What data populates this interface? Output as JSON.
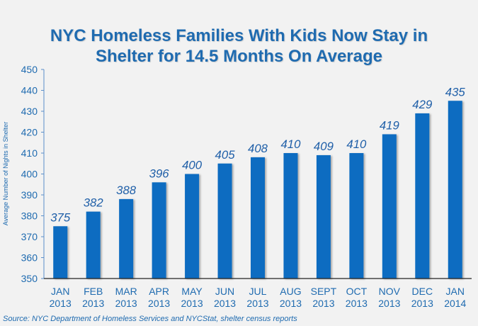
{
  "chart_data": {
    "type": "bar",
    "title": "NYC Homeless Families With Kids Now Stay in Shelter for 14.5 Months On Average",
    "title_lines": [
      "NYC Homeless Families With Kids Now Stay in",
      "Shelter for 14.5 Months On Average"
    ],
    "xlabel": "",
    "ylabel": "Average Number of Nights in Shelter",
    "ylim": [
      350,
      450
    ],
    "yticks": [
      350,
      360,
      370,
      380,
      390,
      400,
      410,
      420,
      430,
      440,
      450
    ],
    "categories": [
      [
        "JAN",
        "2013"
      ],
      [
        "FEB",
        "2013"
      ],
      [
        "MAR",
        "2013"
      ],
      [
        "APR",
        "2013"
      ],
      [
        "MAY",
        "2013"
      ],
      [
        "JUN",
        "2013"
      ],
      [
        "JUL",
        "2013"
      ],
      [
        "AUG",
        "2013"
      ],
      [
        "SEPT",
        "2013"
      ],
      [
        "OCT",
        "2013"
      ],
      [
        "NOV",
        "2013"
      ],
      [
        "DEC",
        "2013"
      ],
      [
        "JAN",
        "2014"
      ]
    ],
    "values": [
      375,
      382,
      388,
      396,
      400,
      405,
      408,
      410,
      409,
      410,
      419,
      429,
      435
    ],
    "grid": false,
    "legend": "none",
    "bar_color": "#0b6cc1",
    "text_color": "#1f6bb0"
  },
  "source": "Source:  NYC Department of Homeless Services and NYCStat, shelter census reports"
}
